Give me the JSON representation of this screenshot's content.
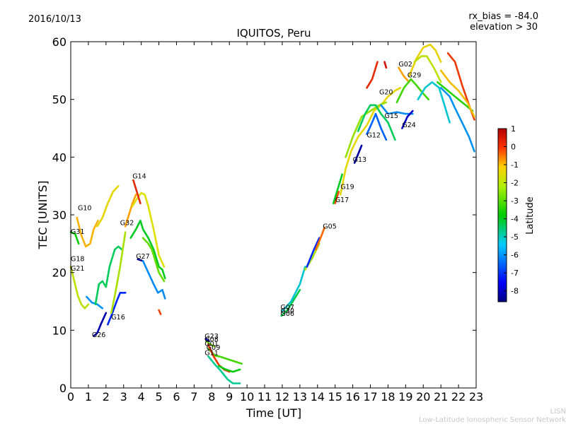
{
  "header": {
    "date": "2016/10/13",
    "rx_bias": "rx_bias = -84.0",
    "elevation": "elevation > 30"
  },
  "footer": {
    "line1": "LISN",
    "line2": "Low-Latitude Ionospheric Sensor Network"
  },
  "colors": {
    "colormap": [
      "#00007f",
      "#0000ff",
      "#007fff",
      "#00cccc",
      "#00cc00",
      "#7fe000",
      "#e0e000",
      "#ffaa00",
      "#ff5500",
      "#cc0000"
    ]
  },
  "chart_data": {
    "type": "scatter",
    "title": "IQUITOS, Peru",
    "xlabel": "Time [UT]",
    "ylabel": "TEC [UNITS]",
    "xlim": [
      0,
      23
    ],
    "ylim": [
      0,
      60
    ],
    "xticks": [
      0,
      1,
      2,
      3,
      4,
      5,
      6,
      7,
      8,
      9,
      10,
      11,
      12,
      13,
      14,
      15,
      16,
      17,
      18,
      19,
      20,
      21,
      22,
      23
    ],
    "yticks": [
      0,
      10,
      20,
      30,
      40,
      50,
      60
    ],
    "grid": false,
    "colorbar": {
      "label": "Latitude",
      "range": [
        -8.6,
        1.0
      ],
      "ticks": [
        1,
        0,
        -1,
        -2,
        -3,
        -4,
        -5,
        -6,
        -7,
        -8
      ]
    },
    "satellite_labels": [
      {
        "name": "G10",
        "x": 0.4,
        "y": 30.8
      },
      {
        "name": "G31",
        "x": 0.0,
        "y": 26.7
      },
      {
        "name": "G18",
        "x": 0.0,
        "y": 22.0
      },
      {
        "name": "G21",
        "x": 0.0,
        "y": 20.3
      },
      {
        "name": "G26",
        "x": 1.2,
        "y": 8.8
      },
      {
        "name": "G16",
        "x": 2.3,
        "y": 11.9
      },
      {
        "name": "G32",
        "x": 2.8,
        "y": 28.2
      },
      {
        "name": "G14",
        "x": 3.5,
        "y": 36.3
      },
      {
        "name": "G27",
        "x": 3.7,
        "y": 22.4
      },
      {
        "name": "G23",
        "x": 7.6,
        "y": 8.6
      },
      {
        "name": "G08",
        "x": 7.6,
        "y": 8.0
      },
      {
        "name": "G01",
        "x": 7.6,
        "y": 7.3
      },
      {
        "name": "G09",
        "x": 7.7,
        "y": 6.6
      },
      {
        "name": "G11",
        "x": 7.6,
        "y": 5.7
      },
      {
        "name": "G07",
        "x": 11.9,
        "y": 13.6
      },
      {
        "name": "G30",
        "x": 11.9,
        "y": 13.0
      },
      {
        "name": "G06",
        "x": 11.9,
        "y": 12.5
      },
      {
        "name": "G05",
        "x": 14.3,
        "y": 27.6
      },
      {
        "name": "G17",
        "x": 15.0,
        "y": 32.2
      },
      {
        "name": "G19",
        "x": 15.3,
        "y": 34.5
      },
      {
        "name": "G13",
        "x": 16.0,
        "y": 39.2
      },
      {
        "name": "G12",
        "x": 16.8,
        "y": 43.4
      },
      {
        "name": "G15",
        "x": 17.8,
        "y": 46.8
      },
      {
        "name": "G20",
        "x": 17.5,
        "y": 50.9
      },
      {
        "name": "G24",
        "x": 18.8,
        "y": 45.2
      },
      {
        "name": "G29",
        "x": 19.1,
        "y": 53.8
      },
      {
        "name": "G02",
        "x": 18.6,
        "y": 55.7
      }
    ],
    "series": [
      {
        "lat": -1.3,
        "points": [
          [
            0.35,
            29.5
          ],
          [
            0.6,
            26.5
          ],
          [
            0.85,
            24.5
          ],
          [
            1.1,
            25
          ],
          [
            1.3,
            27.5
          ],
          [
            1.55,
            29
          ]
        ]
      },
      {
        "lat": -2.0,
        "points": [
          [
            1.5,
            28
          ],
          [
            1.8,
            29.5
          ],
          [
            2.1,
            32
          ],
          [
            2.4,
            34
          ],
          [
            2.7,
            35
          ]
        ]
      },
      {
        "lat": -4.3,
        "points": [
          [
            0.0,
            27
          ],
          [
            0.25,
            26.7
          ],
          [
            0.45,
            25
          ]
        ]
      },
      {
        "lat": -2.6,
        "points": [
          [
            0.0,
            21
          ],
          [
            0.2,
            18.5
          ],
          [
            0.4,
            16
          ],
          [
            0.6,
            14.5
          ],
          [
            0.8,
            13.8
          ],
          [
            1.0,
            14.5
          ]
        ]
      },
      {
        "lat": -6.2,
        "points": [
          [
            0.9,
            15.8
          ],
          [
            1.2,
            14.8
          ],
          [
            1.5,
            14.5
          ],
          [
            1.8,
            13.8
          ]
        ]
      },
      {
        "lat": -8.2,
        "points": [
          [
            1.3,
            9
          ],
          [
            1.5,
            9.5
          ],
          [
            1.7,
            11
          ],
          [
            2.0,
            13
          ]
        ]
      },
      {
        "lat": -7.2,
        "points": [
          [
            2.1,
            11
          ],
          [
            2.3,
            12.5
          ],
          [
            2.6,
            15
          ],
          [
            2.8,
            16.5
          ],
          [
            3.1,
            16.5
          ]
        ]
      },
      {
        "lat": -4.8,
        "points": [
          [
            1.4,
            14.5
          ],
          [
            1.6,
            18
          ],
          [
            1.8,
            18.5
          ],
          [
            2.0,
            17.5
          ],
          [
            2.2,
            21
          ],
          [
            2.5,
            24
          ],
          [
            2.7,
            24.5
          ],
          [
            2.9,
            24
          ]
        ]
      },
      {
        "lat": -2.8,
        "points": [
          [
            2.3,
            13
          ],
          [
            2.5,
            16
          ],
          [
            2.8,
            21
          ],
          [
            3.1,
            27
          ]
        ]
      },
      {
        "lat": -1.0,
        "points": [
          [
            3.1,
            28
          ],
          [
            3.3,
            30
          ],
          [
            3.5,
            32
          ],
          [
            3.7,
            33.5
          ]
        ]
      },
      {
        "lat": -2.2,
        "points": [
          [
            3.5,
            31.5
          ],
          [
            3.8,
            33
          ],
          [
            4.0,
            33.8
          ],
          [
            4.2,
            33.5
          ],
          [
            4.4,
            31.5
          ],
          [
            4.7,
            27.5
          ],
          [
            5.0,
            23
          ],
          [
            5.3,
            21
          ]
        ]
      },
      {
        "lat": -4.5,
        "points": [
          [
            3.4,
            26
          ],
          [
            3.7,
            27.5
          ],
          [
            3.95,
            29
          ],
          [
            4.1,
            27.5
          ],
          [
            4.4,
            26
          ],
          [
            4.7,
            24
          ],
          [
            5.0,
            21
          ],
          [
            5.2,
            20.5
          ],
          [
            5.35,
            19
          ]
        ]
      },
      {
        "lat": 0.5,
        "points": [
          [
            3.55,
            36
          ],
          [
            3.75,
            34
          ],
          [
            3.95,
            32
          ]
        ]
      },
      {
        "lat": -3.5,
        "points": [
          [
            4.1,
            26
          ],
          [
            4.4,
            25
          ],
          [
            4.6,
            24
          ],
          [
            4.8,
            22
          ],
          [
            5.0,
            20
          ],
          [
            5.3,
            18.5
          ]
        ]
      },
      {
        "lat": -8.5,
        "points": [
          [
            3.8,
            22.3
          ],
          [
            4.1,
            22
          ]
        ]
      },
      {
        "lat": -6.3,
        "points": [
          [
            4.1,
            22
          ],
          [
            4.4,
            20
          ],
          [
            4.7,
            18
          ],
          [
            4.95,
            16.5
          ],
          [
            5.2,
            17
          ],
          [
            5.35,
            15.5
          ]
        ]
      },
      {
        "lat": 0.2,
        "points": [
          [
            5.0,
            13.5
          ],
          [
            5.1,
            12.8
          ]
        ]
      },
      {
        "lat": -5.1,
        "points": [
          [
            7.8,
            5.5
          ],
          [
            8.2,
            4
          ],
          [
            8.5,
            3
          ],
          [
            8.9,
            1.5
          ],
          [
            9.2,
            0.8
          ],
          [
            9.6,
            0.8
          ]
        ]
      },
      {
        "lat": -3.8,
        "points": [
          [
            7.8,
            6.8
          ],
          [
            8.2,
            5.6
          ],
          [
            8.5,
            5.4
          ],
          [
            8.8,
            5.1
          ],
          [
            9.2,
            4.7
          ],
          [
            9.7,
            4.2
          ]
        ]
      },
      {
        "lat": 0.3,
        "points": [
          [
            7.8,
            7.5
          ],
          [
            8.1,
            5.5
          ],
          [
            8.4,
            4
          ],
          [
            8.7,
            3.2
          ],
          [
            9.0,
            2.8
          ]
        ]
      },
      {
        "lat": -4.4,
        "points": [
          [
            8.4,
            3.8
          ],
          [
            8.8,
            3.2
          ],
          [
            9.2,
            2.8
          ],
          [
            9.6,
            3.2
          ]
        ]
      },
      {
        "lat": -3.2,
        "points": [
          [
            7.7,
            8.1
          ],
          [
            7.95,
            7.5
          ],
          [
            8.15,
            7.2
          ]
        ]
      },
      {
        "lat": -8.3,
        "points": [
          [
            7.65,
            8.5
          ],
          [
            7.85,
            8.1
          ]
        ]
      },
      {
        "lat": -4.7,
        "points": [
          [
            11.95,
            12.5
          ],
          [
            12.3,
            13.5
          ],
          [
            12.7,
            15.5
          ],
          [
            13.0,
            17
          ]
        ]
      },
      {
        "lat": -5.5,
        "points": [
          [
            12.0,
            13.3
          ],
          [
            12.5,
            15
          ],
          [
            13.0,
            18
          ],
          [
            13.3,
            21
          ]
        ]
      },
      {
        "lat": -2.8,
        "points": [
          [
            13.3,
            20.5
          ],
          [
            13.7,
            22.5
          ],
          [
            14.1,
            25
          ]
        ]
      },
      {
        "lat": -7.2,
        "points": [
          [
            13.4,
            21
          ],
          [
            13.8,
            24
          ],
          [
            14.1,
            26
          ]
        ]
      },
      {
        "lat": -0.3,
        "points": [
          [
            13.9,
            24
          ],
          [
            14.2,
            26.2
          ],
          [
            14.4,
            27.8
          ]
        ]
      },
      {
        "lat": -4.5,
        "points": [
          [
            14.9,
            32
          ],
          [
            15.2,
            35
          ],
          [
            15.4,
            37
          ]
        ]
      },
      {
        "lat": 0.1,
        "points": [
          [
            15.0,
            32
          ],
          [
            15.2,
            34
          ]
        ]
      },
      {
        "lat": -2.0,
        "points": [
          [
            15.3,
            33.5
          ],
          [
            15.6,
            38
          ],
          [
            15.9,
            41
          ],
          [
            16.3,
            43.5
          ],
          [
            16.8,
            45.5
          ],
          [
            17.2,
            48
          ],
          [
            17.6,
            49
          ],
          [
            18.0,
            50.5
          ],
          [
            18.4,
            51.5
          ],
          [
            18.7,
            52
          ]
        ]
      },
      {
        "lat": -3.0,
        "points": [
          [
            15.6,
            40
          ],
          [
            16.0,
            43.5
          ],
          [
            16.5,
            47
          ],
          [
            17.0,
            48
          ],
          [
            17.5,
            49
          ],
          [
            17.9,
            49.5
          ]
        ]
      },
      {
        "lat": -8.3,
        "points": [
          [
            16.1,
            39
          ],
          [
            16.3,
            40.5
          ],
          [
            16.5,
            42
          ]
        ]
      },
      {
        "lat": -6.7,
        "points": [
          [
            16.8,
            44
          ],
          [
            17.1,
            46
          ],
          [
            17.3,
            47.5
          ],
          [
            17.6,
            45
          ],
          [
            17.9,
            43
          ]
        ]
      },
      {
        "lat": -4.8,
        "points": [
          [
            16.3,
            44.5
          ],
          [
            16.7,
            47.5
          ],
          [
            17.0,
            49
          ],
          [
            17.3,
            49
          ],
          [
            17.6,
            47.5
          ],
          [
            18.0,
            46
          ],
          [
            18.4,
            43
          ]
        ]
      },
      {
        "lat": -6.3,
        "points": [
          [
            17.6,
            49
          ],
          [
            18.0,
            47.5
          ],
          [
            18.5,
            47.8
          ],
          [
            19.0,
            47.5
          ],
          [
            19.4,
            47.5
          ]
        ]
      },
      {
        "lat": -8.0,
        "points": [
          [
            18.8,
            45
          ],
          [
            19.1,
            47
          ],
          [
            19.4,
            48
          ]
        ]
      },
      {
        "lat": 0.5,
        "points": [
          [
            16.8,
            52
          ],
          [
            17.1,
            53.5
          ],
          [
            17.4,
            56.5
          ]
        ]
      },
      {
        "lat": -1.0,
        "points": [
          [
            18.6,
            55.5
          ],
          [
            18.9,
            54
          ],
          [
            19.2,
            53
          ]
        ]
      },
      {
        "lat": 0.8,
        "points": [
          [
            17.8,
            56.5
          ],
          [
            17.9,
            55.5
          ]
        ]
      },
      {
        "lat": -1.9,
        "points": [
          [
            19.2,
            54
          ],
          [
            19.6,
            57
          ],
          [
            20.0,
            59
          ],
          [
            20.4,
            59.5
          ],
          [
            20.7,
            58.5
          ],
          [
            21.0,
            56.5
          ]
        ]
      },
      {
        "lat": -2.6,
        "points": [
          [
            19.5,
            56.5
          ],
          [
            19.9,
            57.5
          ],
          [
            20.2,
            57.5
          ],
          [
            20.6,
            55.5
          ],
          [
            21.0,
            53
          ]
        ]
      },
      {
        "lat": -3.8,
        "points": [
          [
            18.5,
            49.5
          ],
          [
            18.9,
            52
          ],
          [
            19.3,
            53.5
          ],
          [
            19.6,
            52.5
          ],
          [
            20.0,
            51
          ],
          [
            20.3,
            50
          ]
        ]
      },
      {
        "lat": -5.5,
        "points": [
          [
            19.7,
            50
          ],
          [
            20.1,
            52
          ],
          [
            20.5,
            53
          ],
          [
            20.9,
            52
          ],
          [
            21.2,
            49
          ],
          [
            21.5,
            46
          ]
        ]
      },
      {
        "lat": -4.0,
        "points": [
          [
            20.8,
            53
          ],
          [
            21.2,
            52
          ],
          [
            21.6,
            51
          ],
          [
            22.0,
            50
          ],
          [
            22.4,
            49
          ],
          [
            22.8,
            48
          ]
        ]
      },
      {
        "lat": -6.2,
        "points": [
          [
            21.0,
            52
          ],
          [
            21.5,
            50.5
          ],
          [
            21.8,
            48.5
          ],
          [
            22.2,
            46
          ],
          [
            22.6,
            43.5
          ],
          [
            22.9,
            41
          ]
        ]
      },
      {
        "lat": 0.3,
        "points": [
          [
            21.4,
            58
          ],
          [
            21.8,
            56.5
          ],
          [
            22.2,
            52.5
          ],
          [
            22.6,
            49
          ],
          [
            22.9,
            46.5
          ]
        ]
      },
      {
        "lat": -1.5,
        "points": [
          [
            21.0,
            55
          ],
          [
            21.5,
            53
          ],
          [
            22.0,
            51.5
          ],
          [
            22.5,
            49.5
          ],
          [
            22.9,
            47
          ]
        ]
      }
    ]
  }
}
